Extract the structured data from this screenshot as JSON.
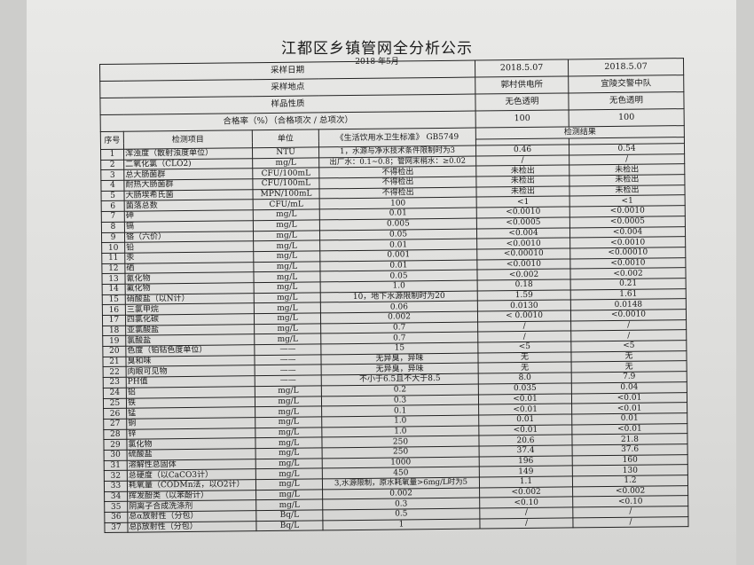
{
  "document": {
    "title": "江都区乡镇管网全分析公示",
    "subtitle": "2018 年5月"
  },
  "header_rows": [
    {
      "label": "采样日期",
      "site1": "2018.5.07",
      "site2": "2018.5.07"
    },
    {
      "label": "采样地点",
      "site1": "郭村供电所",
      "site2": "宜陵交警中队"
    },
    {
      "label": "样品性质",
      "site1": "无色透明",
      "site2": "无色透明"
    },
    {
      "label": "合格率（%）（合格项次 / 总项次）",
      "site1": "100",
      "site2": "100"
    }
  ],
  "columns": {
    "no": "序号",
    "item": "检测项目",
    "unit": "单位",
    "standard": "《生活饮用水卫生标准》 GB5749",
    "results": "检测结果"
  },
  "rows": [
    [
      "1",
      "浑浊度（散射浊度单位）",
      "NTU",
      "1，水源与净水技术条件限制时为3",
      "0.46",
      "0.54"
    ],
    [
      "2",
      "二氧化氯（CLO2)",
      "mg/L",
      "出厂水：0.1~0.8；管网末梢水：≥0.02",
      "/",
      "/"
    ],
    [
      "3",
      "总大肠菌群",
      "CFU/100mL",
      "不得检出",
      "未检出",
      "未检出"
    ],
    [
      "4",
      "耐热大肠菌群",
      "CFU/100mL",
      "不得检出",
      "未检出",
      "未检出"
    ],
    [
      "5",
      "大肠埃希氏菌",
      "MPN/100mL",
      "不得检出",
      "未检出",
      "未检出"
    ],
    [
      "6",
      "菌落总数",
      "CFU/mL",
      "100",
      "<1",
      "<1"
    ],
    [
      "7",
      "砷",
      "mg/L",
      "0.01",
      "<0.0010",
      "<0.0010"
    ],
    [
      "8",
      "镉",
      "mg/L",
      "0.005",
      "<0.0005",
      "<0.0005"
    ],
    [
      "9",
      "铬（六价）",
      "mg/L",
      "0.05",
      "<0.004",
      "<0.004"
    ],
    [
      "10",
      "铅",
      "mg/L",
      "0.01",
      "<0.0010",
      "<0.0010"
    ],
    [
      "11",
      "汞",
      "mg/L",
      "0.001",
      "<0.00010",
      "<0.00010"
    ],
    [
      "12",
      "硒",
      "mg/L",
      "0.01",
      "<0.0010",
      "<0.0010"
    ],
    [
      "13",
      "氰化物",
      "mg/L",
      "0.05",
      "<0.002",
      "<0.002"
    ],
    [
      "14",
      "氟化物",
      "mg/L",
      "1.0",
      "0.18",
      "0.21"
    ],
    [
      "15",
      "硝酸盐（以N计）",
      "mg/L",
      "10，地下水源限制时为20",
      "1.59",
      "1.61"
    ],
    [
      "16",
      "三氯甲烷",
      "mg/L",
      "0.06",
      "0.0130",
      "0.0148"
    ],
    [
      "17",
      "四氯化碳",
      "mg/L",
      "0.002",
      "< 0.0010",
      "<0.0010"
    ],
    [
      "18",
      "亚氯酸盐",
      "mg/L",
      "0.7",
      "/",
      "/"
    ],
    [
      "19",
      "氯酸盐",
      "mg/L",
      "0.7",
      "/",
      "/"
    ],
    [
      "20",
      "色度（铂钴色度单位）",
      "——",
      "15",
      "<5",
      "<5"
    ],
    [
      "21",
      "臭和味",
      "——",
      "无异臭，异味",
      "无",
      "无"
    ],
    [
      "22",
      "肉眼可见物",
      "——",
      "无异臭，异味",
      "无",
      "无"
    ],
    [
      "23",
      "PH值",
      "——",
      "不小于6.5且不大于8.5",
      "8.0",
      "7.9"
    ],
    [
      "24",
      "铝",
      "mg/L",
      "0.2",
      "0.035",
      "0.04"
    ],
    [
      "25",
      "铁",
      "mg/L",
      "0.3",
      "<0.01",
      "<0.01"
    ],
    [
      "26",
      "锰",
      "mg/L",
      "0.1",
      "<0.01",
      "<0.01"
    ],
    [
      "27",
      "铜",
      "mg/L",
      "1.0",
      "0.01",
      "0.01"
    ],
    [
      "28",
      "锌",
      "mg/L",
      "1.0",
      "<0.01",
      "<0.01"
    ],
    [
      "29",
      "氯化物",
      "mg/L",
      "250",
      "20.6",
      "21.8"
    ],
    [
      "30",
      "硫酸盐",
      "mg/L",
      "250",
      "37.4",
      "37.6"
    ],
    [
      "31",
      "溶解性总固体",
      "mg/L",
      "1000",
      "196",
      "160"
    ],
    [
      "32",
      "总硬度（以CaCO3计）",
      "mg/L",
      "450",
      "149",
      "130"
    ],
    [
      "33",
      "耗氧量（CODMn法，以O2计）",
      "mg/L",
      "3,水源限制，原水耗氧量>6mg/L时为5",
      "1.1",
      "1.2"
    ],
    [
      "34",
      "挥发酚类（以苯酚计）",
      "mg/L",
      "0.002",
      "<0.002",
      "<0.002"
    ],
    [
      "35",
      "阴离子合成洗涤剂",
      "mg/L",
      "0.3",
      "<0.10",
      "<0.10"
    ],
    [
      "36",
      "总α放射性（分包）",
      "Bq/L",
      "0.5",
      "/",
      "/"
    ],
    [
      "37",
      "总β放射性（分包）",
      "Bq/L",
      "1",
      "/",
      "/"
    ]
  ]
}
